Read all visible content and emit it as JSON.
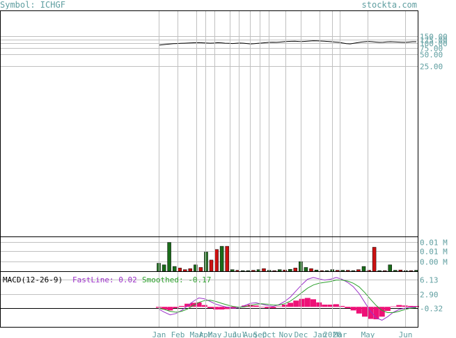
{
  "header": {
    "symbol_label": "Symbol: ICHGF",
    "site_label": "stockta.com"
  },
  "colors": {
    "grid": "#c0c0c0",
    "text": "#5f9ea0",
    "up_volume": "#1a6b1a",
    "down_volume": "#cc1111",
    "fast_line": "#9b30c8",
    "smoothed": "#2ca02c",
    "histogram": "#ee1177",
    "price": "#000000"
  },
  "chart_data": [
    {
      "type": "line",
      "name": "price",
      "y_ticks": [
        "150.00",
        "125.00",
        "100.00",
        "75.00",
        "50.00",
        "25.00"
      ],
      "y_tick_values": [
        150,
        125,
        100,
        75,
        50,
        25
      ],
      "ylim": [
        0,
        160
      ],
      "y_scale": "log",
      "x_tick_labels": [
        "Jan",
        "Feb",
        "Mar",
        "Apr",
        "May",
        "Jun",
        "Jul",
        "Aug",
        "Sep",
        "Oct",
        "Nov",
        "Dec",
        "Jan",
        "2020",
        "Mar",
        "May",
        "Jun"
      ],
      "x_tick_months": [
        0,
        1,
        2,
        2.5,
        3,
        3.8,
        4.3,
        4.9,
        5.4,
        5.9,
        6.8,
        7.6,
        8.6,
        9.3,
        9.7,
        11.2,
        13.2
      ],
      "x_range": [
        -0.5,
        13.9
      ],
      "values": [
        88,
        90,
        92,
        94,
        96,
        97,
        98,
        99,
        100,
        101,
        102,
        103,
        101,
        100,
        99,
        100,
        102,
        101,
        99,
        98,
        97,
        98,
        100,
        99,
        97,
        95,
        96,
        98,
        100,
        102,
        104,
        105,
        104,
        106,
        108,
        110,
        111,
        112,
        110,
        109,
        111,
        113,
        115,
        114,
        113,
        112,
        110,
        108,
        106,
        104,
        100,
        96,
        95,
        98,
        102,
        106,
        108,
        110,
        108,
        106,
        104,
        105,
        107,
        108,
        107,
        106,
        105,
        104,
        106,
        108,
        108
      ],
      "x_start_month": 0,
      "x_end_month": 13.8
    },
    {
      "type": "bar",
      "name": "volume",
      "y_ticks": [
        "0.01 M",
        "0.01 M",
        "0.00 M"
      ],
      "y_tick_fracs": [
        0.15,
        0.42,
        0.72
      ],
      "values": [
        0.25,
        0.2,
        0.9,
        0.15,
        0.1,
        0.05,
        0.08,
        0.2,
        0.12,
        0.6,
        0.35,
        0.68,
        0.78,
        0.78,
        0.05,
        0.03,
        0.02,
        0.02,
        0.03,
        0.05,
        0.08,
        0.03,
        0.02,
        0.05,
        0.04,
        0.06,
        0.1,
        0.3,
        0.12,
        0.08,
        0.04,
        0.02,
        0.02,
        0.05,
        0.03,
        0.03,
        0.03,
        0.02,
        0.05,
        0.15,
        0.03,
        0.75,
        0.02,
        0.02,
        0.2,
        0.03,
        0.04,
        0.02,
        0.02,
        0.03
      ],
      "ups": [
        1,
        1,
        1,
        1,
        0,
        0,
        0,
        1,
        0,
        1,
        0,
        0,
        1,
        0,
        1,
        0,
        1,
        1,
        0,
        1,
        0,
        1,
        0,
        1,
        0,
        1,
        0,
        1,
        1,
        0,
        1,
        0,
        1,
        1,
        0,
        1,
        0,
        1,
        0,
        1,
        0,
        0,
        1,
        0,
        1,
        1,
        0,
        1,
        0,
        1
      ]
    },
    {
      "type": "line",
      "name": "macd",
      "title": "MACD(12-26-9)",
      "fast_label": "FastLine: 0.02",
      "smoothed_label": "Smoothed: -0.17",
      "y_ticks": [
        "6.13",
        "2.90",
        "-0.32"
      ],
      "y_tick_values": [
        6.13,
        2.9,
        -0.32
      ],
      "ylim": [
        -4.5,
        8
      ],
      "fast_line": [
        -0.5,
        -1.2,
        -1.8,
        -1.5,
        -0.8,
        0.2,
        1.2,
        2.0,
        1.8,
        1.2,
        0.6,
        0.2,
        -0.1,
        -0.3,
        -0.2,
        0.3,
        0.8,
        0.9,
        0.6,
        0.3,
        0.1,
        0.5,
        1.2,
        2.2,
        3.6,
        5.0,
        6.2,
        6.6,
        6.3,
        6.0,
        6.2,
        6.6,
        6.2,
        5.5,
        4.5,
        3.0,
        1.0,
        -1.0,
        -2.5,
        -3.0,
        -2.2,
        -1.2,
        -0.6,
        -0.3,
        -0.1,
        0.02
      ],
      "smoothed": [
        -0.3,
        -0.6,
        -1.0,
        -1.2,
        -1.0,
        -0.5,
        0.3,
        1.0,
        1.4,
        1.5,
        1.2,
        0.8,
        0.4,
        0.1,
        -0.1,
        0.0,
        0.3,
        0.6,
        0.7,
        0.6,
        0.4,
        0.4,
        0.7,
        1.3,
        2.2,
        3.2,
        4.2,
        4.9,
        5.3,
        5.5,
        5.7,
        6.0,
        6.0,
        5.8,
        5.3,
        4.5,
        3.2,
        1.7,
        0.3,
        -0.8,
        -1.3,
        -1.3,
        -1.0,
        -0.6,
        -0.3,
        -0.17
      ]
    }
  ]
}
